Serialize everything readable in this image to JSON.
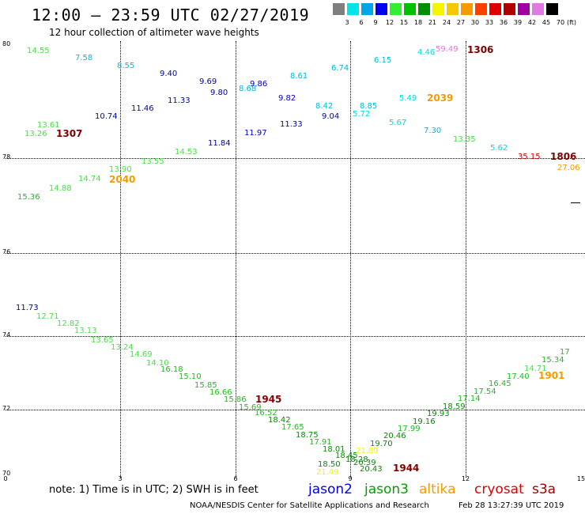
{
  "header": {
    "title": "12:00 – 23:59 UTC 02/27/2019",
    "subtitle": "12 hour collection of altimeter wave heights"
  },
  "scale": {
    "unit_label": "(ft)",
    "bins": [
      {
        "label": "3",
        "color": "#7f7f7f"
      },
      {
        "label": "6",
        "color": "#00e5e5"
      },
      {
        "label": "9",
        "color": "#00a6e6"
      },
      {
        "label": "12",
        "color": "#0000ee"
      },
      {
        "label": "15",
        "color": "#33ee33"
      },
      {
        "label": "18",
        "color": "#00c000"
      },
      {
        "label": "21",
        "color": "#008f00"
      },
      {
        "label": "24",
        "color": "#f5f500"
      },
      {
        "label": "27",
        "color": "#f5c800"
      },
      {
        "label": "30",
        "color": "#f59b00"
      },
      {
        "label": "33",
        "color": "#ff3f00"
      },
      {
        "label": "36",
        "color": "#e00000"
      },
      {
        "label": "39",
        "color": "#b00000"
      },
      {
        "label": "42",
        "color": "#a000a0"
      },
      {
        "label": "45",
        "color": "#e07ae0"
      },
      {
        "label": "70",
        "color": "#000000"
      }
    ]
  },
  "axes": {
    "y_ticks": [
      "80",
      "78",
      "76",
      "74",
      "72",
      "70"
    ],
    "x_ticks": [
      "0",
      "3",
      "6",
      "9",
      "12",
      "15"
    ]
  },
  "observations": [
    {
      "v": "14.55",
      "c": "#4ddc4d"
    },
    {
      "v": "7.58",
      "c": "#00bbdd"
    },
    {
      "v": "8.55",
      "c": "#00bbdd"
    },
    {
      "v": "9.40",
      "c": "#0000bb"
    },
    {
      "v": "9.69",
      "c": "#0000bb"
    },
    {
      "v": "9.80",
      "c": "#0000bb"
    },
    {
      "v": "8.68",
      "c": "#00bbdd"
    },
    {
      "v": "9.86",
      "c": "#0000bb"
    },
    {
      "v": "8.61",
      "c": "#00bbdd"
    },
    {
      "v": "6.74",
      "c": "#00bbdd"
    },
    {
      "v": "6.15",
      "c": "#00bbdd"
    },
    {
      "v": "4.46",
      "c": "#00dddd"
    },
    {
      "v": "59.49",
      "c": "#e07ae0"
    },
    {
      "v": "11.46",
      "c": "#0000bb"
    },
    {
      "v": "11.33",
      "c": "#0000bb"
    },
    {
      "v": "9.82",
      "c": "#0000bb"
    },
    {
      "v": "8.42",
      "c": "#00bbdd"
    },
    {
      "v": "8.85",
      "c": "#00bbdd"
    },
    {
      "v": "5.49",
      "c": "#00dddd"
    },
    {
      "v": "10.74",
      "c": "#0000bb"
    },
    {
      "v": "9.04",
      "c": "#0000bb"
    },
    {
      "v": "5.72",
      "c": "#00dddd"
    },
    {
      "v": "13.61",
      "c": "#4ddc4d"
    },
    {
      "v": "13.26",
      "c": "#4ddc4d"
    },
    {
      "v": "11.33",
      "c": "#0000bb"
    },
    {
      "v": "5.67",
      "c": "#00dddd"
    },
    {
      "v": "7.30",
      "c": "#00bbdd"
    },
    {
      "v": "11.97",
      "c": "#0000bb"
    },
    {
      "v": "13.35",
      "c": "#4ddc4d"
    },
    {
      "v": "11.84",
      "c": "#0000bb"
    },
    {
      "v": "14.53",
      "c": "#4ddc4d"
    },
    {
      "v": "5.62",
      "c": "#00dddd"
    },
    {
      "v": "35.15",
      "c": "#cc0000"
    },
    {
      "v": "13.55",
      "c": "#4ddc4d"
    },
    {
      "v": "13.90",
      "c": "#4ddc4d"
    },
    {
      "v": "27.06",
      "c": "#f59b00"
    },
    {
      "v": "14.74",
      "c": "#4ddc4d"
    },
    {
      "v": "14.88",
      "c": "#4ddc4d"
    },
    {
      "v": "15.36",
      "c": "#22bb22"
    },
    {
      "v": "11.73",
      "c": "#0000bb"
    },
    {
      "v": "12.71",
      "c": "#4ddc4d"
    },
    {
      "v": "12.82",
      "c": "#4ddc4d"
    },
    {
      "v": "13.13",
      "c": "#4ddc4d"
    },
    {
      "v": "13.65",
      "c": "#4ddc4d"
    },
    {
      "v": "13.24",
      "c": "#4ddc4d"
    },
    {
      "v": "14.69",
      "c": "#4ddc4d"
    },
    {
      "v": "14.10",
      "c": "#4ddc4d"
    },
    {
      "v": "16.18",
      "c": "#22bb22"
    },
    {
      "v": "15.10",
      "c": "#22bb22"
    },
    {
      "v": "15.85",
      "c": "#22bb22"
    },
    {
      "v": "16.66",
      "c": "#22bb22"
    },
    {
      "v": "15.86",
      "c": "#22bb22"
    },
    {
      "v": "15.69",
      "c": "#22bb22"
    },
    {
      "v": "16.52",
      "c": "#22bb22"
    },
    {
      "v": "18.42",
      "c": "#008f00"
    },
    {
      "v": "17.65",
      "c": "#22bb22"
    },
    {
      "v": "18.75",
      "c": "#008f00"
    },
    {
      "v": "17.91",
      "c": "#22bb22"
    },
    {
      "v": "18.01",
      "c": "#008f00"
    },
    {
      "v": "18.45",
      "c": "#008f00"
    },
    {
      "v": "18.28",
      "c": "#008f00"
    },
    {
      "v": "18.50",
      "c": "#008f00"
    },
    {
      "v": "20.39",
      "c": "#008f00"
    },
    {
      "v": "21.49",
      "c": "#f5f500"
    },
    {
      "v": "21.89",
      "c": "#f5f500"
    },
    {
      "v": "20.43",
      "c": "#008f00"
    },
    {
      "v": "19.70",
      "c": "#008f00"
    },
    {
      "v": "20.46",
      "c": "#008f00"
    },
    {
      "v": "17.99",
      "c": "#22bb22"
    },
    {
      "v": "19.16",
      "c": "#008f00"
    },
    {
      "v": "19.93",
      "c": "#008f00"
    },
    {
      "v": "18.59",
      "c": "#008f00"
    },
    {
      "v": "17.14",
      "c": "#22bb22"
    },
    {
      "v": "17.54",
      "c": "#22bb22"
    },
    {
      "v": "16.45",
      "c": "#22bb22"
    },
    {
      "v": "17.40",
      "c": "#22bb22"
    },
    {
      "v": "14.71",
      "c": "#4ddc4d"
    },
    {
      "v": "15.34",
      "c": "#22bb22"
    },
    {
      "v": "17",
      "c": "#22bb22"
    }
  ],
  "pass_times": [
    {
      "t": "1306",
      "c": "#800000"
    },
    {
      "t": "2039",
      "c": "#f59b00"
    },
    {
      "t": "1307",
      "c": "#800000"
    },
    {
      "t": "1806",
      "c": "#800000"
    },
    {
      "t": "2040",
      "c": "#f59b00"
    },
    {
      "t": "1945",
      "c": "#800000"
    },
    {
      "t": "1901",
      "c": "#f59b00"
    },
    {
      "t": "1944",
      "c": "#800000"
    }
  ],
  "footer": {
    "note": "note: 1) Time is in UTC; 2) SWH is in feet",
    "satellites": [
      {
        "name": "jason2",
        "color": "#0000ee"
      },
      {
        "name": "jason3",
        "color": "#00a000"
      },
      {
        "name": "altika",
        "color": "#f59b00"
      },
      {
        "name": "cryosat",
        "color": "#e00000"
      },
      {
        "name": "s3a",
        "color": "#a00000"
      }
    ],
    "credit": "NOAA/NESDIS Center for Satellite Applications and Research",
    "generated": "Feb 28 13:27:39 UTC 2019"
  }
}
